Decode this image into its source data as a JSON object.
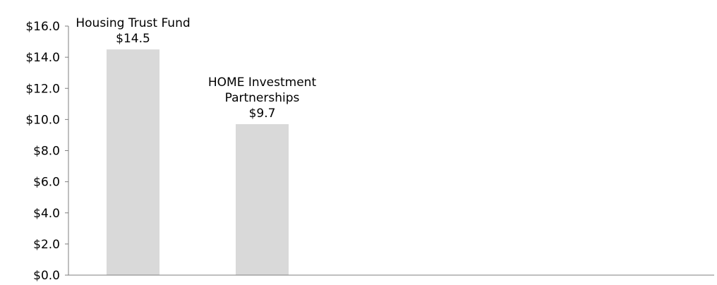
{
  "chart_data": {
    "type": "bar",
    "title": "",
    "xlabel": "",
    "ylabel": "",
    "categories": [
      "Housing Trust Fund",
      "HOME Investment Partnerships"
    ],
    "values": [
      14.5,
      9.7
    ],
    "data_labels": [
      [
        "Housing Trust Fund",
        "$14.5"
      ],
      [
        "HOME Investment",
        "Partnerships",
        "$9.7"
      ]
    ],
    "ylim": [
      0,
      16
    ],
    "yticks": [
      0,
      2,
      4,
      6,
      8,
      10,
      12,
      14,
      16
    ],
    "ytick_labels": [
      "$0.0",
      "$2.0",
      "$4.0",
      "$6.0",
      "$8.0",
      "$10.0",
      "$12.0",
      "$14.0",
      "$16.0"
    ],
    "category_slots": 5,
    "grid": false,
    "legend": "none",
    "bar_color": "#d9d9d9",
    "axis_color": "#7f7f7f"
  }
}
